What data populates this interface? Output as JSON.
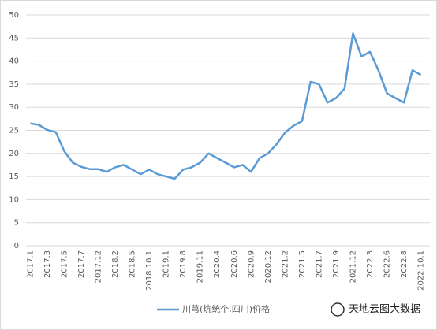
{
  "chart_data": {
    "type": "line",
    "categories": [
      "2017.1",
      null,
      "2017.3",
      null,
      "2017.5",
      null,
      "2017.7",
      null,
      "2017.12",
      null,
      "2018.2",
      null,
      "2018.5",
      null,
      "2018.10.1",
      null,
      "2019.1",
      null,
      "2019.8",
      null,
      "2019.11",
      null,
      "2020.4",
      null,
      "2020.6",
      null,
      "2020.9",
      null,
      "2020.12",
      null,
      "2021.2",
      null,
      "2021.5",
      null,
      "2021.7",
      null,
      "2021.9",
      null,
      "2021.12",
      null,
      "2022.3",
      null,
      "2022.6",
      null,
      "2022.8",
      null,
      "2022.10.1"
    ],
    "series": [
      {
        "name": "川芎(炕统个,四川)价格",
        "color": "#5b9bd5",
        "values": [
          26.5,
          26.2,
          25.1,
          24.6,
          20.5,
          18,
          17.1,
          16.6,
          16.6,
          16,
          17,
          17.5,
          16.5,
          15.5,
          16.5,
          15.5,
          15,
          14.5,
          16.5,
          17,
          18,
          20,
          19,
          18,
          17,
          17.5,
          16,
          19,
          20,
          22,
          24.5,
          26,
          27,
          35.5,
          35,
          31,
          32,
          34,
          46,
          41,
          42,
          38,
          33,
          32,
          31,
          38,
          37
        ]
      }
    ],
    "ylim": [
      0,
      50
    ],
    "yticks": [
      0,
      5,
      10,
      15,
      20,
      25,
      30,
      35,
      40,
      45,
      50
    ],
    "grid": true,
    "legend": "bottom",
    "watermark": "天地云图大数据"
  }
}
